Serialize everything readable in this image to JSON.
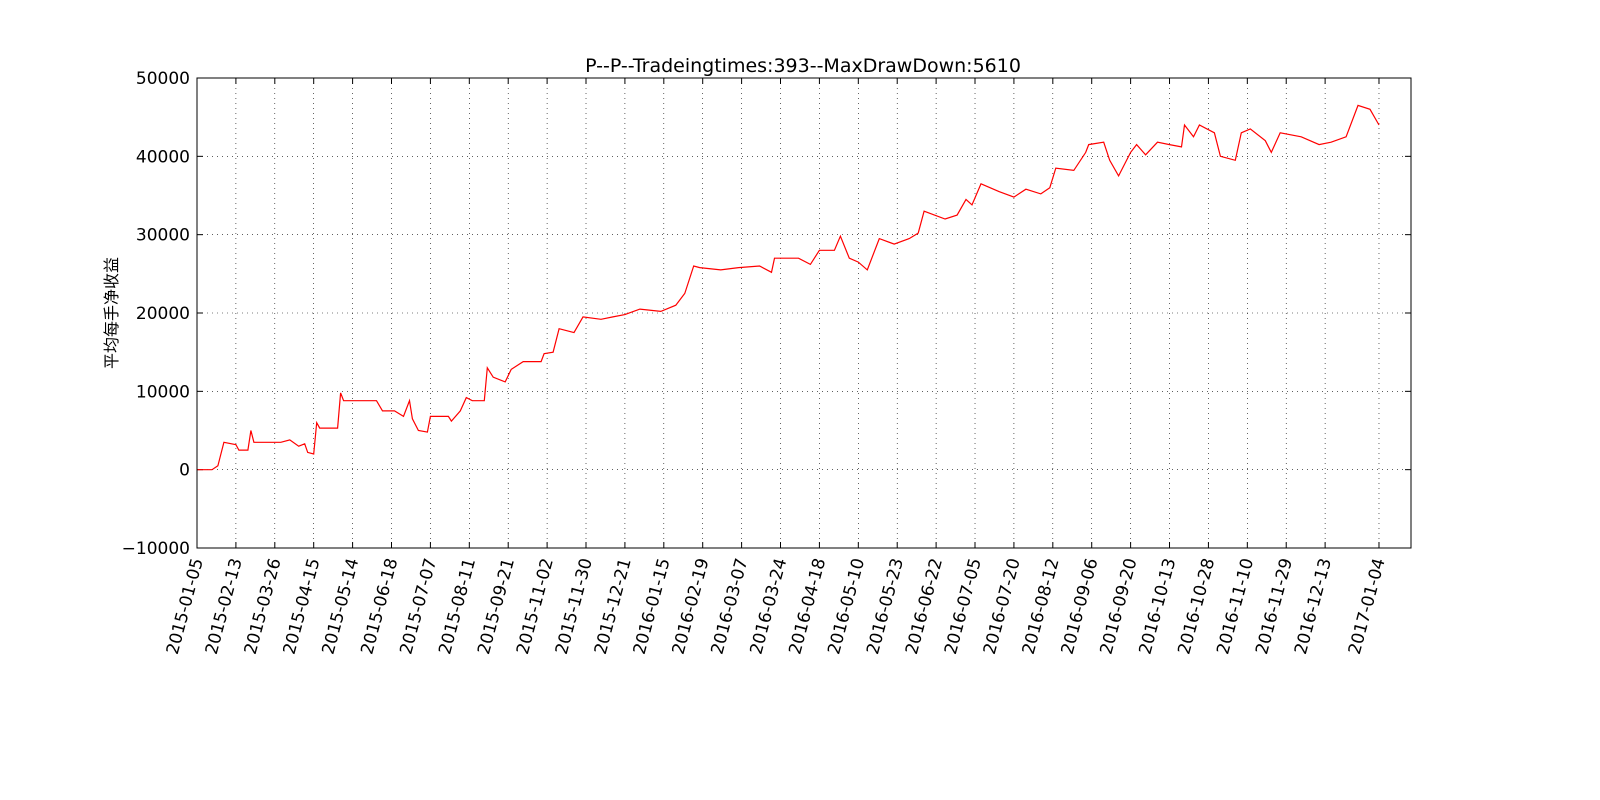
{
  "chart_data": {
    "type": "line",
    "title": "P--P--Tradeingtimes:393--MaxDrawDown:5610",
    "y_label": "平均每手净收益",
    "color": "#ff0000",
    "grid": true,
    "x": [
      0,
      5,
      7,
      8,
      9,
      13,
      14,
      17,
      18,
      19,
      28,
      31,
      34,
      36,
      37,
      39,
      40,
      41,
      47,
      48,
      49,
      60,
      62,
      66,
      69,
      71,
      72,
      74,
      77,
      78,
      84,
      85,
      88,
      90,
      92,
      96,
      97,
      99,
      103,
      105,
      109,
      115,
      116,
      119,
      121,
      126,
      129,
      135,
      139,
      143,
      148,
      155,
      160,
      163,
      166,
      168,
      175,
      181,
      188,
      192,
      193,
      201,
      205,
      208,
      213,
      215,
      218,
      221,
      224,
      228,
      233,
      238,
      241,
      243,
      250,
      254,
      257,
      259,
      262,
      268,
      273,
      277,
      282,
      285,
      287,
      293,
      297,
      298,
      303,
      305,
      308,
      312,
      314,
      317,
      321,
      325,
      329,
      330,
      333,
      335,
      340,
      342,
      347,
      349,
      352,
      357,
      359,
      362,
      369,
      375,
      379,
      384,
      388,
      392,
      395
    ],
    "values": [
      0,
      0,
      500,
      2000,
      3500,
      3200,
      2500,
      2500,
      5000,
      3500,
      3500,
      3800,
      3000,
      3300,
      2200,
      2000,
      6000,
      5300,
      5300,
      9800,
      8800,
      8800,
      7500,
      7500,
      6800,
      8800,
      6500,
      5000,
      4800,
      6800,
      6800,
      6200,
      7500,
      9200,
      8800,
      8800,
      13000,
      11800,
      11200,
      12800,
      13800,
      13800,
      14800,
      15000,
      18000,
      17500,
      19500,
      19200,
      19500,
      19800,
      20500,
      20200,
      21000,
      22500,
      26000,
      25800,
      25500,
      25800,
      26000,
      25200,
      27000,
      27000,
      26200,
      28000,
      28000,
      29800,
      27000,
      26500,
      25500,
      29500,
      28800,
      29500,
      30200,
      33000,
      32000,
      32500,
      34500,
      33800,
      36500,
      35500,
      34800,
      35800,
      35200,
      36000,
      38500,
      38200,
      40500,
      41500,
      41800,
      39500,
      37500,
      40500,
      41500,
      40200,
      41800,
      41500,
      41200,
      44000,
      42500,
      44000,
      43000,
      40000,
      39500,
      43000,
      43500,
      42000,
      40500,
      43000,
      42500,
      41500,
      41800,
      42500,
      46500,
      46000,
      44000
    ],
    "xlim": [
      0,
      405.7
    ],
    "ylim": [
      -10000,
      50000
    ],
    "yticks": [
      {
        "value": -10000,
        "label": "−10000"
      },
      0,
      10000,
      20000,
      30000,
      40000,
      50000
    ],
    "xticks": [
      {
        "value": 0,
        "label": "2015-01-05"
      },
      {
        "value": 13,
        "label": "2015-02-13"
      },
      {
        "value": 26,
        "label": "2015-03-26"
      },
      {
        "value": 39,
        "label": "2015-04-15"
      },
      {
        "value": 52,
        "label": "2015-05-14"
      },
      {
        "value": 65,
        "label": "2015-06-18"
      },
      {
        "value": 78,
        "label": "2015-07-07"
      },
      {
        "value": 91,
        "label": "2015-08-11"
      },
      {
        "value": 104,
        "label": "2015-09-21"
      },
      {
        "value": 117,
        "label": "2015-11-02"
      },
      {
        "value": 130,
        "label": "2015-11-30"
      },
      {
        "value": 143,
        "label": "2015-12-21"
      },
      {
        "value": 156,
        "label": "2016-01-15"
      },
      {
        "value": 169,
        "label": "2016-02-19"
      },
      {
        "value": 182,
        "label": "2016-03-07"
      },
      {
        "value": 195,
        "label": "2016-03-24"
      },
      {
        "value": 208,
        "label": "2016-04-18"
      },
      {
        "value": 221,
        "label": "2016-05-10"
      },
      {
        "value": 234,
        "label": "2016-05-23"
      },
      {
        "value": 247,
        "label": "2016-06-22"
      },
      {
        "value": 260,
        "label": "2016-07-05"
      },
      {
        "value": 273,
        "label": "2016-07-20"
      },
      {
        "value": 286,
        "label": "2016-08-12"
      },
      {
        "value": 299,
        "label": "2016-09-06"
      },
      {
        "value": 312,
        "label": "2016-09-20"
      },
      {
        "value": 325,
        "label": "2016-10-13"
      },
      {
        "value": 338,
        "label": "2016-10-28"
      },
      {
        "value": 351,
        "label": "2016-11-10"
      },
      {
        "value": 364,
        "label": "2016-11-29"
      },
      {
        "value": 377,
        "label": "2016-12-13"
      },
      {
        "value": 395,
        "label": "2017-01-04"
      }
    ]
  }
}
